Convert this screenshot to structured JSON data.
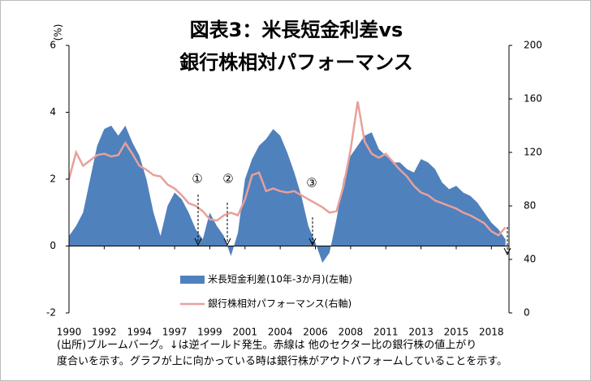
{
  "chart_data": {
    "type": "area-line",
    "title": [
      "図表3：米長短金利差vs",
      "銀行株相対パフォーマンス"
    ],
    "ylabel": "(%)",
    "notes": [
      "(出所)ブルームバーグ。↓は逆イールド発生。赤線は 他のセクター比の銀行株の値上がり",
      "度合いを示す。グラフが上に向かっている時は銀行株がアウトパフォームしていることを示す。"
    ],
    "annotations": [
      "①",
      "②",
      "③"
    ],
    "x": [
      0,
      2,
      4,
      6,
      8,
      10,
      12,
      14,
      16,
      18,
      20,
      22,
      24,
      26,
      28,
      30,
      32,
      34,
      36,
      38,
      40,
      42,
      44,
      46,
      48,
      50,
      52,
      54,
      56,
      58,
      60,
      62,
      64,
      66,
      68,
      70,
      72,
      74,
      76,
      78,
      80,
      82,
      84,
      86,
      88,
      90,
      92,
      94,
      96,
      98,
      100,
      102,
      104,
      106,
      108,
      110,
      112,
      114,
      116,
      118,
      120,
      122,
      124
    ],
    "xlim": [
      0,
      125
    ],
    "xticks": [
      {
        "value": 0,
        "label": "1990"
      },
      {
        "value": 10,
        "label": "1992"
      },
      {
        "value": 20,
        "label": "1994"
      },
      {
        "value": 30,
        "label": "1997"
      },
      {
        "value": 40,
        "label": "1999"
      },
      {
        "value": 50,
        "label": "2001"
      },
      {
        "value": 60,
        "label": "2004"
      },
      {
        "value": 70,
        "label": "2006"
      },
      {
        "value": 80,
        "label": "2008"
      },
      {
        "value": 90,
        "label": "2011"
      },
      {
        "value": 100,
        "label": "2013"
      },
      {
        "value": 110,
        "label": "2015"
      },
      {
        "value": 120,
        "label": "2018"
      }
    ],
    "ylim": [
      -2,
      6
    ],
    "yticks": [
      -2,
      0,
      2,
      4,
      6
    ],
    "y2lim": [
      0,
      200
    ],
    "y2ticks": [
      0,
      40,
      80,
      120,
      160,
      200
    ],
    "series": [
      {
        "name": "米長短金利差(10年-3か月)(左軸)",
        "color": "#4f81bd",
        "kind": "area",
        "values": [
          0.3,
          0.6,
          1.0,
          2.0,
          3.0,
          3.5,
          3.6,
          3.3,
          3.6,
          3.1,
          2.7,
          2.0,
          1.0,
          0.3,
          1.2,
          1.6,
          1.4,
          1.0,
          0.5,
          0.2,
          1.0,
          0.6,
          0.3,
          -0.3,
          0.4,
          2.0,
          2.6,
          3.0,
          3.2,
          3.5,
          3.3,
          2.8,
          2.2,
          1.5,
          0.6,
          0.1,
          -0.5,
          -0.2,
          0.8,
          2.0,
          2.7,
          3.0,
          3.3,
          3.4,
          2.9,
          2.7,
          2.5,
          2.5,
          2.3,
          2.2,
          2.6,
          2.5,
          2.3,
          1.9,
          1.7,
          1.8,
          1.6,
          1.5,
          1.3,
          1.0,
          0.7,
          0.5,
          0.2
        ]
      },
      {
        "name": "銀行株相対パフォーマンス(右軸)",
        "color": "#e8a09a",
        "kind": "line",
        "axis": "y2",
        "values": [
          100,
          120,
          110,
          114,
          118,
          119,
          117,
          118,
          127,
          119,
          110,
          107,
          103,
          102,
          96,
          93,
          88,
          82,
          80,
          76,
          70,
          69,
          73,
          75,
          73,
          85,
          103,
          105,
          91,
          93,
          91,
          90,
          91,
          88,
          85,
          82,
          79,
          75,
          76,
          95,
          122,
          158,
          128,
          119,
          116,
          119,
          113,
          107,
          102,
          95,
          90,
          88,
          84,
          82,
          80,
          78,
          75,
          73,
          70,
          67,
          61,
          58,
          64
        ]
      }
    ]
  }
}
